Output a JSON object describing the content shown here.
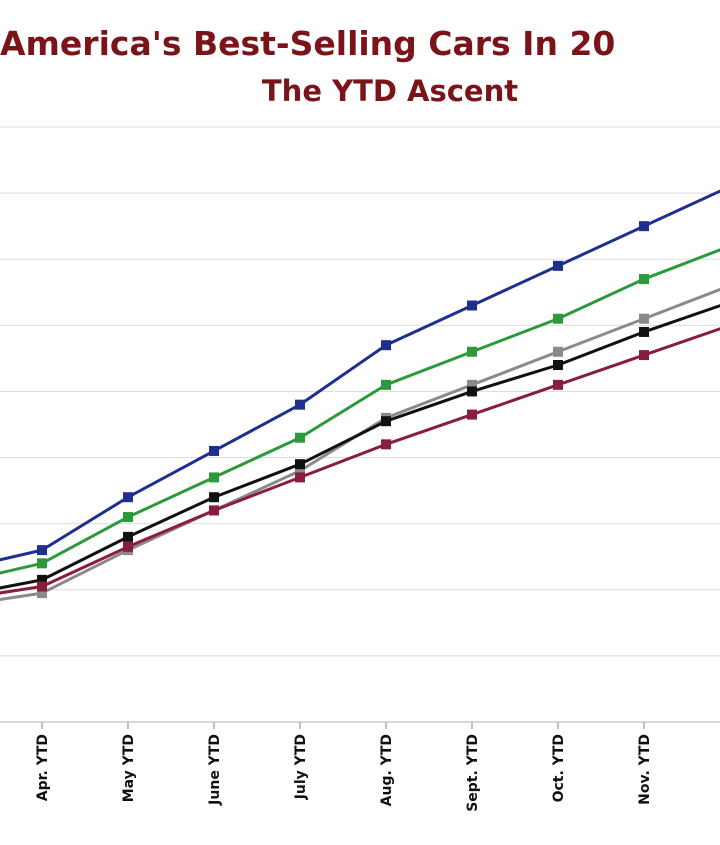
{
  "chart_data": {
    "type": "line",
    "title": "America's Best-Selling Cars In 20",
    "subtitle": "The YTD Ascent",
    "categories": [
      "Apr. YTD",
      "May YTD",
      "June YTD",
      "July YTD",
      "Aug. YTD",
      "Sept. YTD",
      "Oct. YTD",
      "Nov. YTD"
    ],
    "ylim": [
      0,
      9
    ],
    "grid": true,
    "legend": "none",
    "series": [
      {
        "color": "#1f2f8f",
        "marker": "square",
        "values": [
          2.6,
          3.4,
          4.1,
          4.8,
          5.7,
          6.3,
          6.9,
          7.5
        ],
        "edge_left": 2.3,
        "edge_right": 8.1
      },
      {
        "color": "#2a9a3a",
        "marker": "square",
        "values": [
          2.4,
          3.1,
          3.7,
          4.3,
          5.1,
          5.6,
          6.1,
          6.7
        ],
        "edge_left": 2.1,
        "edge_right": 7.2
      },
      {
        "color": "#8a8a8a",
        "marker": "square",
        "values": [
          1.95,
          2.6,
          3.2,
          3.8,
          4.6,
          5.1,
          5.6,
          6.1
        ],
        "edge_left": 1.75,
        "edge_right": 6.6
      },
      {
        "color": "#111111",
        "marker": "square",
        "values": [
          2.15,
          2.8,
          3.4,
          3.9,
          4.55,
          5.0,
          5.4,
          5.9
        ],
        "edge_left": 1.9,
        "edge_right": 6.35
      },
      {
        "color": "#8a1c3c",
        "marker": "square",
        "values": [
          2.05,
          2.65,
          3.2,
          3.7,
          4.2,
          4.65,
          5.1,
          5.55
        ],
        "edge_left": 1.85,
        "edge_right": 6.0
      }
    ]
  }
}
